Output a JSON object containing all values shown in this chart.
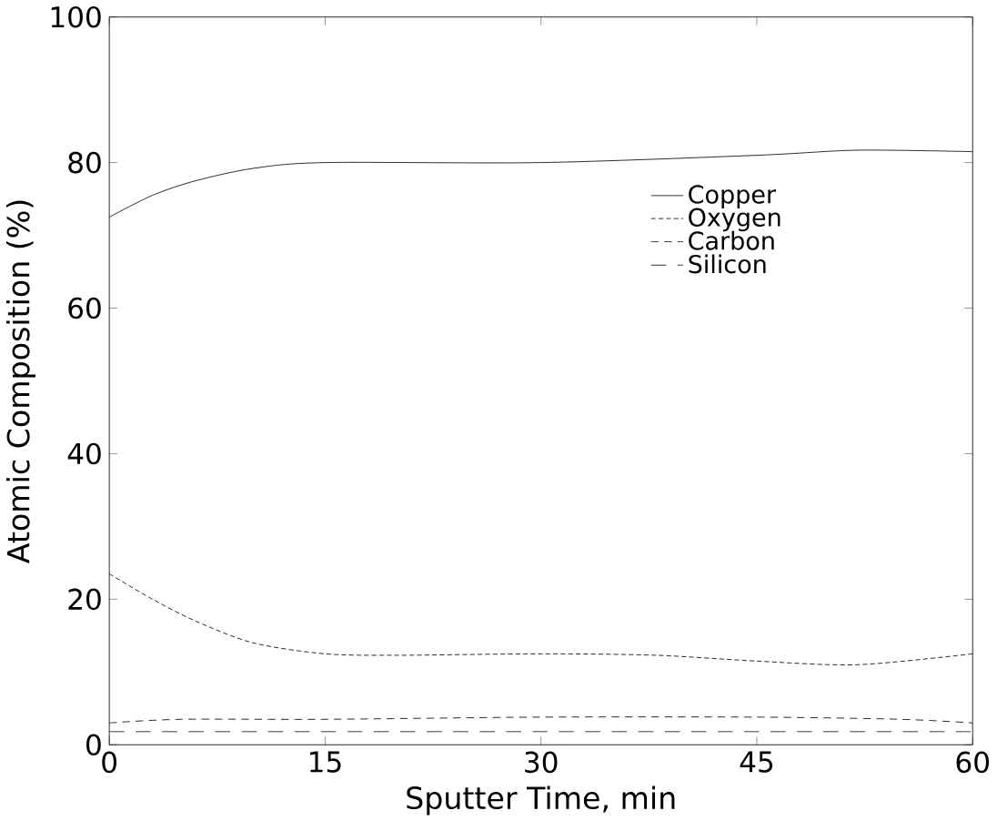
{
  "chart_data": {
    "type": "line",
    "xlabel": "Sputter Time, min",
    "ylabel": "Atomic Composition (%)",
    "xlim": [
      0,
      60
    ],
    "ylim": [
      0,
      100
    ],
    "xticks": [
      0,
      15,
      30,
      45,
      60
    ],
    "yticks": [
      0,
      20,
      40,
      60,
      80,
      100
    ],
    "legend": "right",
    "grid": false,
    "marker": "none",
    "series": [
      {
        "name": "Copper",
        "color": "#000000",
        "line_style": "solid",
        "x": [
          0,
          3,
          6,
          10,
          15,
          30,
          45,
          52,
          60
        ],
        "values": [
          72.5,
          75.5,
          77.5,
          79.2,
          80,
          80,
          81,
          81.7,
          81.5
        ]
      },
      {
        "name": "Oxygen",
        "color": "#000000",
        "line_style": "dotted",
        "x": [
          0,
          3,
          6,
          10,
          15,
          20,
          30,
          38,
          45,
          52,
          60
        ],
        "values": [
          23.5,
          20,
          17,
          14,
          12.5,
          12.3,
          12.5,
          12.3,
          11.5,
          11,
          12.5
        ]
      },
      {
        "name": "Carbon",
        "color": "#000000",
        "line_style": "dashed",
        "x": [
          0,
          5,
          15,
          30,
          45,
          55,
          60
        ],
        "values": [
          3,
          3.5,
          3.5,
          3.8,
          3.8,
          3.5,
          3
        ]
      },
      {
        "name": "Silicon",
        "color": "#000000",
        "line_style": "longdashed",
        "x": [
          0,
          15,
          30,
          45,
          60
        ],
        "values": [
          1.8,
          1.8,
          1.8,
          1.8,
          1.8
        ]
      }
    ]
  }
}
